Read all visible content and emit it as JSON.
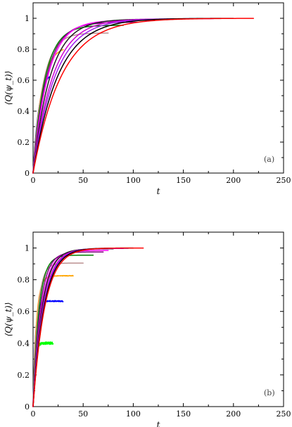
{
  "chart_data": [
    {
      "type": "line",
      "panel_label": "(a)",
      "xlabel": "t",
      "ylabel": "⟨Q(ψ_t)⟩",
      "xlim": [
        0,
        250
      ],
      "ylim": [
        0,
        1.1
      ],
      "xticks": [
        0,
        50,
        100,
        150,
        200,
        250
      ],
      "yticks": [
        0,
        0.2,
        0.4,
        0.6,
        0.8,
        1
      ],
      "grid": false,
      "series": [
        {
          "color": "#00ff00",
          "plateau": 0.4,
          "rate": 0.25,
          "tmax": 3
        },
        {
          "color": "#0000ff",
          "plateau": 0.665,
          "rate": 0.17,
          "tmax": 16
        },
        {
          "color": "#ffa500",
          "plateau": 0.82,
          "rate": 0.12,
          "tmax": 30
        },
        {
          "color": "#bc8f8f",
          "plateau": 0.905,
          "rate": 0.1,
          "tmax": 75
        },
        {
          "color": "#008000",
          "plateau": 0.955,
          "rate": 0.085,
          "tmax": 90
        },
        {
          "color": "#800080",
          "plateau": 0.975,
          "rate": 0.075,
          "tmax": 105
        },
        {
          "color": "#ff00ff",
          "plateau": 0.988,
          "rate": 0.068,
          "tmax": 120
        },
        {
          "color": "#1f1f1f",
          "plateau": 0.995,
          "rate": 0.058,
          "tmax": 140
        },
        {
          "color": "#d000d0",
          "plateau": 0.997,
          "rate": 0.05,
          "tmax": 160
        },
        {
          "color": "#a020f0",
          "plateau": 0.998,
          "rate": 0.045,
          "tmax": 180
        },
        {
          "color": "#000000",
          "plateau": 1.0,
          "rate": 0.04,
          "tmax": 200
        },
        {
          "color": "#ff0000",
          "plateau": 1.0,
          "rate": 0.035,
          "tmax": 220
        }
      ]
    },
    {
      "type": "line",
      "panel_label": "(b)",
      "xlabel": "t",
      "ylabel": "⟨Q(ψ_t)⟩",
      "xlim": [
        0,
        250
      ],
      "ylim": [
        0,
        1.1
      ],
      "xticks": [
        0,
        50,
        100,
        150,
        200,
        250
      ],
      "yticks": [
        0,
        0.2,
        0.4,
        0.6,
        0.8,
        1
      ],
      "grid": false,
      "series": [
        {
          "color": "#00ff00",
          "plateau": 0.4,
          "rate": 0.6,
          "tmax": 20,
          "noise": 0.008
        },
        {
          "color": "#0000ff",
          "plateau": 0.665,
          "rate": 0.45,
          "tmax": 30,
          "noise": 0.004
        },
        {
          "color": "#ffa500",
          "plateau": 0.825,
          "rate": 0.3,
          "tmax": 40,
          "noise": 0.002
        },
        {
          "color": "#bc8f8f",
          "plateau": 0.905,
          "rate": 0.22,
          "tmax": 50
        },
        {
          "color": "#008000",
          "plateau": 0.955,
          "rate": 0.17,
          "tmax": 60
        },
        {
          "color": "#800080",
          "plateau": 0.975,
          "rate": 0.14,
          "tmax": 70
        },
        {
          "color": "#ff00ff",
          "plateau": 0.985,
          "rate": 0.12,
          "tmax": 75
        },
        {
          "color": "#1f1f1f",
          "plateau": 0.995,
          "rate": 0.11,
          "tmax": 80
        },
        {
          "color": "#d000d0",
          "plateau": 0.997,
          "rate": 0.1,
          "tmax": 90
        },
        {
          "color": "#a020f0",
          "plateau": 0.998,
          "rate": 0.095,
          "tmax": 95
        },
        {
          "color": "#000000",
          "plateau": 1.0,
          "rate": 0.09,
          "tmax": 100
        },
        {
          "color": "#ff0000",
          "plateau": 1.0,
          "rate": 0.085,
          "tmax": 110
        }
      ]
    }
  ]
}
